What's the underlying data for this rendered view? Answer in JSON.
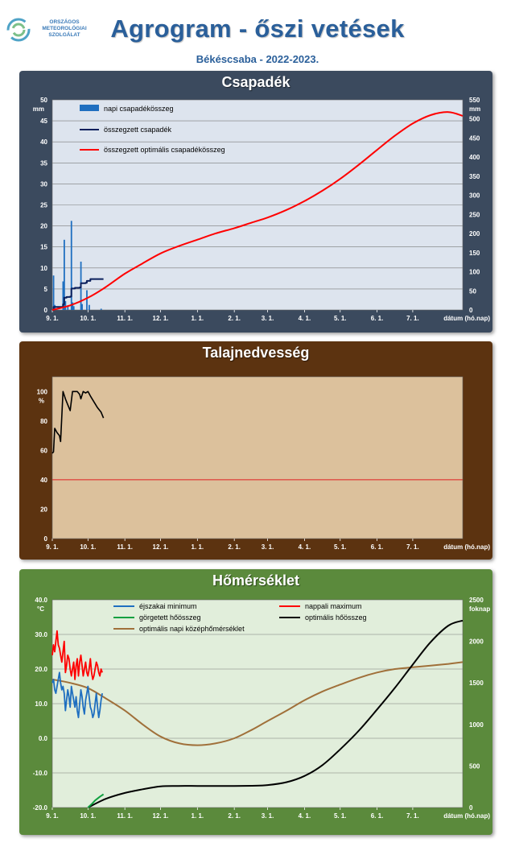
{
  "header": {
    "logo_lines": [
      "ORSZÁGOS",
      "METEOROLÓGIAI",
      "SZOLGÁLAT"
    ],
    "title": "Agrogram - őszi vetések",
    "subtitle": "Békéscsaba - 2022-2023."
  },
  "x_axis": {
    "tick_labels": [
      "9. 1.",
      "10. 1.",
      "11. 1.",
      "12. 1.",
      "1. 1.",
      "2. 1.",
      "3. 1.",
      "4. 1.",
      "5. 1.",
      "6. 1.",
      "7. 1."
    ],
    "day_offsets": [
      0,
      30,
      61,
      91,
      122,
      153,
      181,
      212,
      242,
      273,
      303
    ],
    "range_days": [
      0,
      345
    ],
    "unit_label": "dátum (hó.nap)"
  },
  "chart_data": [
    {
      "id": "precip",
      "type": "bar+line",
      "title": "Csapadék",
      "background": "#dde4ee",
      "y_left": {
        "unit": "mm",
        "range": [
          0,
          50
        ],
        "ticks": [
          0,
          5,
          10,
          15,
          20,
          25,
          30,
          35,
          40,
          45,
          50
        ]
      },
      "y_right": {
        "unit": "mm",
        "range": [
          0,
          550
        ],
        "ticks": [
          0,
          50,
          100,
          150,
          200,
          250,
          300,
          350,
          400,
          450,
          500,
          550
        ]
      },
      "legend": [
        "napi csapadékösszeg",
        "összegzett csapadék",
        "összegzett optimális csapadékösszeg"
      ],
      "colors": {
        "bars": "#1f6fc0",
        "cumulative": "#0a1f5c",
        "optimal": "#ff0000"
      },
      "daily_bars": [
        [
          1,
          8.2
        ],
        [
          2,
          1.2
        ],
        [
          9,
          6.8
        ],
        [
          10,
          16.7
        ],
        [
          11,
          2.1
        ],
        [
          13,
          0.8
        ],
        [
          16,
          21.2
        ],
        [
          17,
          1.8
        ],
        [
          18,
          0.9
        ],
        [
          24,
          11.5
        ],
        [
          25,
          1.4
        ],
        [
          29,
          4.7
        ],
        [
          31,
          1.2
        ],
        [
          41,
          0.3
        ]
      ],
      "cumulative_precip": [
        [
          0,
          0
        ],
        [
          1,
          8
        ],
        [
          9,
          15
        ],
        [
          10,
          32
        ],
        [
          12,
          34
        ],
        [
          15,
          35
        ],
        [
          16,
          56
        ],
        [
          19,
          58
        ],
        [
          23,
          59
        ],
        [
          24,
          70
        ],
        [
          28,
          71
        ],
        [
          29,
          76
        ],
        [
          32,
          81
        ],
        [
          43,
          81
        ]
      ],
      "optimal_cumulative": [
        [
          0,
          0
        ],
        [
          15,
          12
        ],
        [
          30,
          32
        ],
        [
          45,
          60
        ],
        [
          61,
          95
        ],
        [
          76,
          122
        ],
        [
          91,
          148
        ],
        [
          107,
          168
        ],
        [
          122,
          184
        ],
        [
          137,
          200
        ],
        [
          153,
          214
        ],
        [
          168,
          229
        ],
        [
          181,
          242
        ],
        [
          197,
          262
        ],
        [
          212,
          285
        ],
        [
          227,
          312
        ],
        [
          242,
          343
        ],
        [
          258,
          381
        ],
        [
          273,
          419
        ],
        [
          288,
          456
        ],
        [
          303,
          488
        ],
        [
          318,
          510
        ],
        [
          333,
          518
        ],
        [
          345,
          508
        ]
      ]
    },
    {
      "id": "soil",
      "type": "line",
      "title": "Talajnedvesség",
      "background": "#dcc19c",
      "y_left": {
        "unit": "%",
        "range": [
          0,
          110
        ],
        "ticks": [
          0,
          20,
          40,
          60,
          80,
          100
        ]
      },
      "threshold": 40,
      "colors": {
        "moisture": "#000000",
        "threshold": "#e02020"
      },
      "soil_moisture": [
        [
          0,
          58
        ],
        [
          1,
          59
        ],
        [
          2,
          75
        ],
        [
          4,
          72
        ],
        [
          6,
          70
        ],
        [
          7,
          66
        ],
        [
          9,
          100
        ],
        [
          11,
          95
        ],
        [
          13,
          91
        ],
        [
          15,
          87
        ],
        [
          17,
          100
        ],
        [
          19,
          100
        ],
        [
          21,
          100
        ],
        [
          23,
          98
        ],
        [
          24,
          95
        ],
        [
          26,
          100
        ],
        [
          28,
          99
        ],
        [
          30,
          100
        ],
        [
          32,
          97
        ],
        [
          35,
          93
        ],
        [
          38,
          89
        ],
        [
          41,
          86
        ],
        [
          43,
          82
        ]
      ]
    },
    {
      "id": "temp",
      "type": "line",
      "title": "Hőmérséklet",
      "background": "#e1eedb",
      "y_left": {
        "unit": "°C",
        "range": [
          -20,
          40
        ],
        "ticks": [
          -20,
          -10,
          0,
          10,
          20,
          30,
          40
        ],
        "tick_format": "1 decimal"
      },
      "y_right": {
        "unit": "foknap",
        "range": [
          0,
          2500
        ],
        "ticks": [
          0,
          500,
          1000,
          1500,
          2000,
          2500
        ]
      },
      "legend": [
        "éjszakai minimum",
        "nappali maximum",
        "görgetett hőösszeg",
        "optimális hőösszeg",
        "optimális napi középhőmérséklet"
      ],
      "colors": {
        "min": "#1f6fc0",
        "max": "#ff0000",
        "rolling": "#10a040",
        "optimal_sum": "#000000",
        "optimal_mean": "#a0703a"
      },
      "night_min": [
        [
          0,
          16
        ],
        [
          1,
          17
        ],
        [
          2,
          14
        ],
        [
          3,
          13
        ],
        [
          4,
          15
        ],
        [
          5,
          17
        ],
        [
          6,
          19
        ],
        [
          7,
          16
        ],
        [
          8,
          14
        ],
        [
          9,
          15
        ],
        [
          10,
          13
        ],
        [
          11,
          8
        ],
        [
          12,
          11
        ],
        [
          13,
          14
        ],
        [
          14,
          12
        ],
        [
          15,
          9
        ],
        [
          16,
          15
        ],
        [
          17,
          13
        ],
        [
          18,
          11
        ],
        [
          19,
          9
        ],
        [
          20,
          12
        ],
        [
          21,
          8
        ],
        [
          22,
          6
        ],
        [
          23,
          10
        ],
        [
          24,
          14
        ],
        [
          25,
          12
        ],
        [
          26,
          9
        ],
        [
          27,
          7
        ],
        [
          28,
          11
        ],
        [
          29,
          13
        ],
        [
          30,
          15
        ],
        [
          31,
          12
        ],
        [
          32,
          9
        ],
        [
          33,
          8
        ],
        [
          34,
          6
        ],
        [
          35,
          7
        ],
        [
          36,
          10
        ],
        [
          37,
          13
        ],
        [
          38,
          9
        ],
        [
          39,
          6
        ],
        [
          40,
          8
        ],
        [
          41,
          11
        ],
        [
          42,
          13
        ]
      ],
      "day_max": [
        [
          0,
          24
        ],
        [
          1,
          27
        ],
        [
          2,
          25
        ],
        [
          3,
          28
        ],
        [
          4,
          31
        ],
        [
          5,
          27
        ],
        [
          6,
          26
        ],
        [
          7,
          24
        ],
        [
          8,
          22
        ],
        [
          9,
          25
        ],
        [
          10,
          28
        ],
        [
          11,
          19
        ],
        [
          12,
          21
        ],
        [
          13,
          24
        ],
        [
          14,
          23
        ],
        [
          15,
          20
        ],
        [
          16,
          18
        ],
        [
          17,
          20
        ],
        [
          18,
          22
        ],
        [
          19,
          17
        ],
        [
          20,
          21
        ],
        [
          21,
          23
        ],
        [
          22,
          18
        ],
        [
          23,
          22
        ],
        [
          24,
          24
        ],
        [
          25,
          21
        ],
        [
          26,
          18
        ],
        [
          27,
          20
        ],
        [
          28,
          22
        ],
        [
          29,
          19
        ],
        [
          30,
          18
        ],
        [
          31,
          20
        ],
        [
          32,
          23
        ],
        [
          33,
          19
        ],
        [
          34,
          17
        ],
        [
          35,
          18
        ],
        [
          36,
          20
        ],
        [
          37,
          22
        ],
        [
          38,
          21
        ],
        [
          39,
          19
        ],
        [
          40,
          18
        ],
        [
          41,
          20
        ],
        [
          42,
          19
        ]
      ],
      "rolling_heat_sum": [
        [
          30,
          0
        ],
        [
          33,
          40
        ],
        [
          36,
          85
        ],
        [
          40,
          130
        ],
        [
          43,
          160
        ]
      ],
      "optimal_heat_sum": [
        [
          30,
          0
        ],
        [
          45,
          105
        ],
        [
          61,
          175
        ],
        [
          76,
          220
        ],
        [
          91,
          255
        ],
        [
          106,
          260
        ],
        [
          122,
          260
        ],
        [
          137,
          260
        ],
        [
          153,
          260
        ],
        [
          168,
          262
        ],
        [
          181,
          270
        ],
        [
          197,
          305
        ],
        [
          212,
          380
        ],
        [
          227,
          510
        ],
        [
          242,
          700
        ],
        [
          258,
          930
        ],
        [
          273,
          1180
        ],
        [
          288,
          1440
        ],
        [
          303,
          1720
        ],
        [
          318,
          1990
        ],
        [
          333,
          2190
        ],
        [
          345,
          2250
        ]
      ],
      "optimal_daily_mean": [
        [
          0,
          17
        ],
        [
          15,
          16
        ],
        [
          30,
          14.5
        ],
        [
          45,
          11.5
        ],
        [
          61,
          8
        ],
        [
          76,
          4
        ],
        [
          91,
          0.5
        ],
        [
          107,
          -1.5
        ],
        [
          122,
          -2
        ],
        [
          137,
          -1.5
        ],
        [
          153,
          0
        ],
        [
          168,
          2.5
        ],
        [
          181,
          5
        ],
        [
          197,
          8
        ],
        [
          212,
          11
        ],
        [
          227,
          13.5
        ],
        [
          242,
          15.5
        ],
        [
          258,
          17.5
        ],
        [
          273,
          19
        ],
        [
          288,
          20
        ],
        [
          303,
          20.5
        ],
        [
          318,
          21
        ],
        [
          333,
          21.5
        ],
        [
          345,
          22
        ]
      ]
    }
  ]
}
